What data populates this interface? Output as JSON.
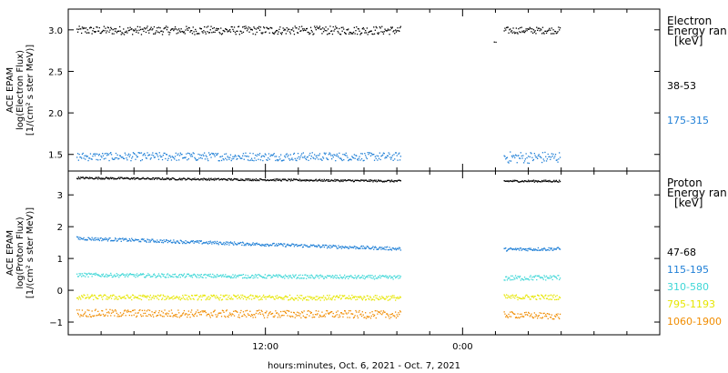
{
  "colors": {
    "black": "#000000",
    "blue": "#1f7fd6",
    "cyan": "#3fd7d7",
    "yellow": "#e6e600",
    "orange": "#f08c00"
  },
  "chart_data": [
    {
      "type": "scatter",
      "panel": "electron",
      "ylabel_lines": [
        "ACE EPAM",
        "log(Electron Flux)",
        "[1/(cm² s ster MeV)]"
      ],
      "ylim": [
        1.3,
        3.25
      ],
      "yticks": [
        1.5,
        2.0,
        2.5,
        3.0
      ],
      "ytick_labels": [
        "1.5",
        "2.0",
        "2.5",
        "3.0"
      ],
      "legend_title_lines": [
        "Electron",
        "Energy ran",
        "[keV]"
      ],
      "series": [
        {
          "name": "38-53",
          "color": "#000000",
          "segments": [
            {
              "x_start": 0.5,
              "x_end": 20.2,
              "mean": 3.0,
              "spread": 0.05
            },
            {
              "x_start": 25.9,
              "x_end": 26.0,
              "mean": 2.86,
              "spread": 0.01
            },
            {
              "x_start": 26.5,
              "x_end": 29.9,
              "mean": 3.0,
              "spread": 0.04
            }
          ]
        },
        {
          "name": "175-315",
          "color": "#1f7fd6",
          "segments": [
            {
              "x_start": 0.5,
              "x_end": 20.2,
              "mean": 1.48,
              "spread": 0.05
            },
            {
              "x_start": 26.5,
              "x_end": 29.9,
              "mean": 1.47,
              "spread": 0.07
            }
          ]
        }
      ]
    },
    {
      "type": "scatter",
      "panel": "proton",
      "ylabel_lines": [
        "ACE EPAM",
        "log(Proton Flux)",
        "[1/(cm² s ster MeV)]"
      ],
      "ylim": [
        -1.4,
        3.75
      ],
      "yticks": [
        -1,
        0,
        1,
        2,
        3
      ],
      "ytick_labels": [
        "−1",
        "0",
        "1",
        "2",
        "3"
      ],
      "legend_title_lines": [
        "Proton",
        "Energy ran",
        "[keV]"
      ],
      "series": [
        {
          "name": "47-68",
          "color": "#000000",
          "segments": [
            {
              "x_start": 0.5,
              "x_end": 20.2,
              "mean_start": 3.55,
              "mean_end": 3.45,
              "spread": 0.03
            },
            {
              "x_start": 26.5,
              "x_end": 29.9,
              "mean_start": 3.45,
              "mean_end": 3.45,
              "spread": 0.03
            }
          ]
        },
        {
          "name": "115-195",
          "color": "#1f7fd6",
          "segments": [
            {
              "x_start": 0.5,
              "x_end": 20.2,
              "mean_start": 1.65,
              "mean_end": 1.32,
              "spread": 0.05
            },
            {
              "x_start": 26.5,
              "x_end": 29.9,
              "mean_start": 1.3,
              "mean_end": 1.32,
              "spread": 0.05
            }
          ]
        },
        {
          "name": "310-580",
          "color": "#3fd7d7",
          "segments": [
            {
              "x_start": 0.5,
              "x_end": 20.2,
              "mean_start": 0.5,
              "mean_end": 0.42,
              "spread": 0.06
            },
            {
              "x_start": 26.5,
              "x_end": 29.9,
              "mean_start": 0.4,
              "mean_end": 0.42,
              "spread": 0.08
            }
          ]
        },
        {
          "name": "795-1193",
          "color": "#e6e600",
          "segments": [
            {
              "x_start": 0.5,
              "x_end": 20.2,
              "mean_start": -0.2,
              "mean_end": -0.22,
              "spread": 0.08
            },
            {
              "x_start": 26.5,
              "x_end": 29.9,
              "mean_start": -0.2,
              "mean_end": -0.2,
              "spread": 0.08
            }
          ]
        },
        {
          "name": "1060-1900",
          "color": "#f08c00",
          "segments": [
            {
              "x_start": 0.5,
              "x_end": 20.2,
              "mean_start": -0.7,
              "mean_end": -0.75,
              "spread": 0.12
            },
            {
              "x_start": 26.5,
              "x_end": 29.9,
              "mean_start": -0.75,
              "mean_end": -0.8,
              "spread": 0.1
            }
          ]
        }
      ]
    }
  ],
  "x_axis": {
    "xlim": [
      0,
      36
    ],
    "major_ticks": [
      12,
      24
    ],
    "major_labels": [
      "12:00",
      "0:00"
    ],
    "minor_ticks": [
      2,
      4,
      6,
      8,
      10,
      14,
      16,
      18,
      20,
      22,
      26,
      28,
      30,
      32,
      34
    ],
    "title": "hours:minutes, Oct.  6, 2021 - Oct.  7, 2021"
  }
}
